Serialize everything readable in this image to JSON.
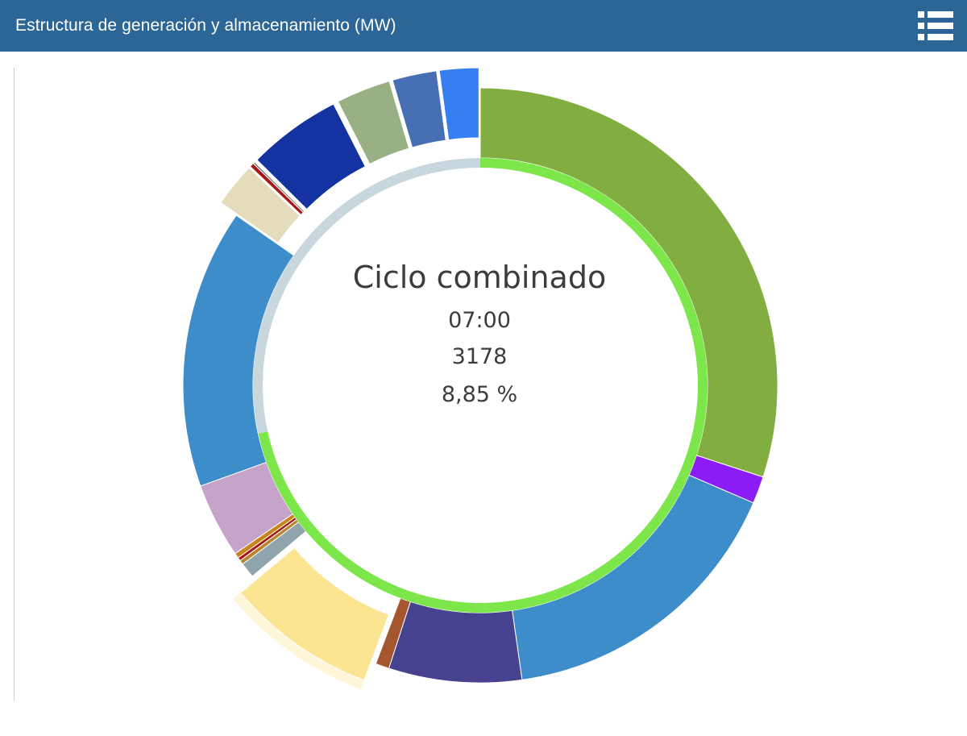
{
  "header": {
    "title": "Estructura de generación y almacenamiento (MW)",
    "menu_icon": "list-menu-icon",
    "background": "#2c6696"
  },
  "center": {
    "name": "Ciclo combinado",
    "time": "07:00",
    "value": "3178",
    "percent": "8,85 %"
  },
  "chart_data": {
    "type": "donut",
    "title": "",
    "selected": "Ciclo combinado",
    "outer_ring": [
      {
        "value": 32.4,
        "color": "#82ad40",
        "exploded": false
      },
      {
        "value": 1.6,
        "color": "#8b1cf5",
        "exploded": false
      },
      {
        "value": 17.6,
        "color": "#3d8dcb",
        "exploded": false
      },
      {
        "value": 7.8,
        "color": "#47428f",
        "exploded": false
      },
      {
        "value": 0.8,
        "color": "#a4572f",
        "exploded": false
      },
      {
        "value": 8.85,
        "color": "#fbe592",
        "exploded": true,
        "highlighted": true
      },
      {
        "value": 0.9,
        "color": "#90a4ae",
        "exploded": false
      },
      {
        "value": 0.25,
        "color": "#b8852e",
        "exploded": false
      },
      {
        "value": 0.2,
        "color": "#a61818",
        "exploded": false
      },
      {
        "value": 0.3,
        "color": "#c7861d",
        "exploded": false
      },
      {
        "value": 4.4,
        "color": "#c6a3c9",
        "exploded": false
      },
      {
        "value": 16.4,
        "color": "#3d8dcb",
        "exploded": false
      },
      {
        "value": 2.6,
        "color": "#e4dcba",
        "exploded": true
      },
      {
        "value": 0.25,
        "color": "#a61818",
        "exploded": true
      },
      {
        "value": 0.1,
        "color": "#555555",
        "exploded": true
      },
      {
        "value": 5.5,
        "color": "#1533a0",
        "exploded": true
      },
      {
        "value": 3.2,
        "color": "#98b084",
        "exploded": true
      },
      {
        "value": 2.6,
        "color": "#4670b3",
        "exploded": true
      },
      {
        "value": 2.3,
        "color": "#357ff0",
        "exploded": true
      }
    ],
    "inner_ring": [
      {
        "value": 71.6,
        "color": "#7ce64a"
      },
      {
        "value": 28.4,
        "color": "#c8d6de"
      }
    ]
  }
}
